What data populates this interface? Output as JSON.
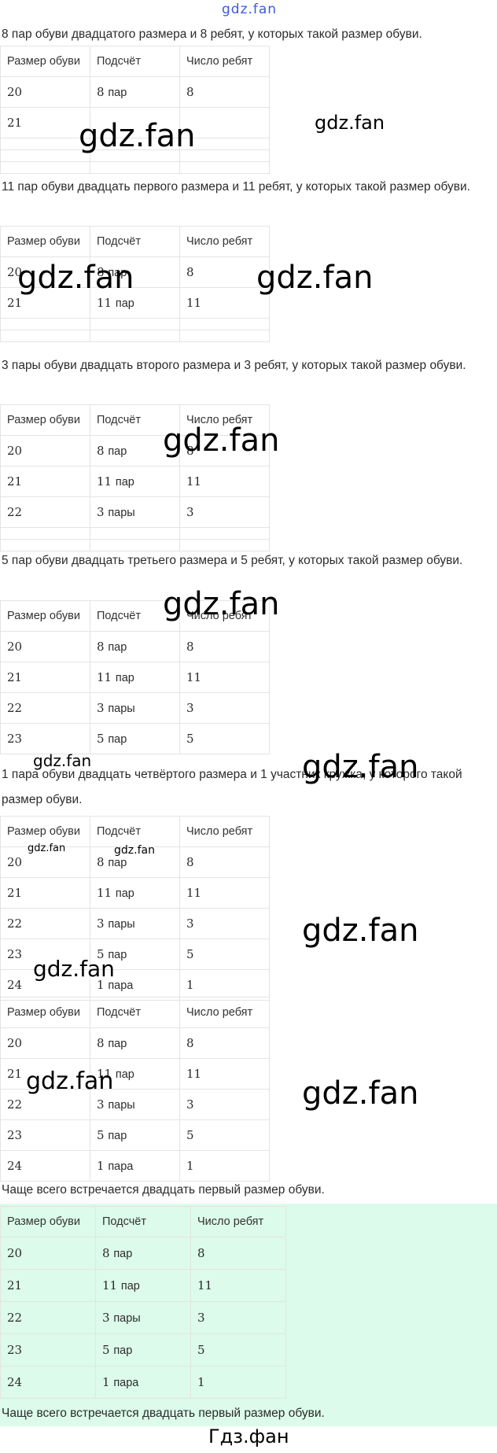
{
  "watermark_top": "gdz.fan",
  "watermark": "gdz.fan",
  "footer": "Гдз.фан",
  "headers": [
    "Размер обуви",
    "Подсчёт",
    "Число ребят"
  ],
  "sections": [
    {
      "text": "8 пар обуви двадцатого размера и 8 ребят, у которых такой размер обуви.",
      "rows": [
        [
          "20",
          "8 пар",
          "8"
        ],
        [
          "21",
          "",
          ""
        ]
      ],
      "blank_rows": 3
    },
    {
      "text": "11 пар обуви двадцать первого размера и 11 ребят, у которых такой размер обуви.",
      "rows": [
        [
          "20",
          "8 пар",
          "8"
        ],
        [
          "21",
          "11 пар",
          "11"
        ]
      ],
      "blank_rows": 2
    },
    {
      "text": "3 пары обуви двадцать второго размера и 3 ребят, у которых такой размер обуви.",
      "rows": [
        [
          "20",
          "8 пар",
          "8"
        ],
        [
          "21",
          "11 пар",
          "11"
        ],
        [
          "22",
          "3 пары",
          "3"
        ]
      ],
      "blank_rows": 2
    },
    {
      "text": "5 пар обуви двадцать третьего размера и 5 ребят, у которых такой размер обуви.",
      "rows": [
        [
          "20",
          "8 пар",
          "8"
        ],
        [
          "21",
          "11 пар",
          "11"
        ],
        [
          "22",
          "3 пары",
          "3"
        ],
        [
          "23",
          "5 пар",
          "5"
        ]
      ],
      "blank_rows": 0
    },
    {
      "text": "1 пара обуви двадцать четвёртого размера и 1 участник кружка, у которого такой размер обуви.",
      "rows": [
        [
          "20",
          "8 пар",
          "8"
        ],
        [
          "21",
          "11 пар",
          "11"
        ],
        [
          "22",
          "3 пары",
          "3"
        ],
        [
          "23",
          "5 пар",
          "5"
        ],
        [
          "24",
          "1 пара",
          "1"
        ]
      ],
      "blank_rows": 0
    },
    {
      "text": "",
      "rows": [
        [
          "20",
          "8 пар",
          "8"
        ],
        [
          "21",
          "11 пар",
          "11"
        ],
        [
          "22",
          "3 пары",
          "3"
        ],
        [
          "23",
          "5 пар",
          "5"
        ],
        [
          "24",
          "1 пара",
          "1"
        ]
      ],
      "blank_rows": 0
    }
  ],
  "conclusion": "Чаще всего встречается двадцать первый размер обуви.",
  "answer": {
    "background": "#dcfbea",
    "rows": [
      [
        "20",
        "8 пар",
        "8"
      ],
      [
        "21",
        "11 пар",
        "11"
      ],
      [
        "22",
        "3 пары",
        "3"
      ],
      [
        "23",
        "5 пар",
        "5"
      ],
      [
        "24",
        "1 пара",
        "1"
      ]
    ],
    "conclusion": "Чаще всего встречается двадцать первый размер обуви."
  }
}
